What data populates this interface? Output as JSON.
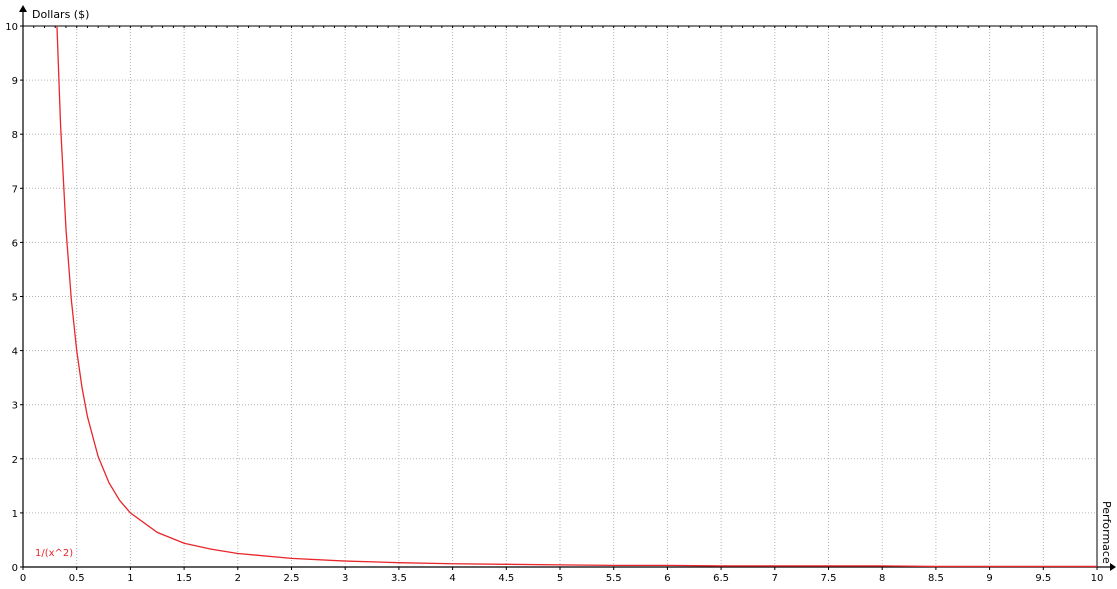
{
  "chart_data": {
    "type": "line",
    "title": "",
    "xlabel": "Performace",
    "ylabel": "Dollars ($)",
    "xlim": [
      0,
      10
    ],
    "ylim": [
      0,
      10
    ],
    "grid": true,
    "x_ticks": [
      "0",
      "0.5",
      "1",
      "1.5",
      "2",
      "2.5",
      "3",
      "3.5",
      "4",
      "4.5",
      "5",
      "5.5",
      "6",
      "6.5",
      "7",
      "7.5",
      "8",
      "8.5",
      "9",
      "9.5",
      "10"
    ],
    "y_ticks": [
      "0",
      "1",
      "2",
      "3",
      "4",
      "5",
      "6",
      "7",
      "8",
      "9",
      "10"
    ],
    "series": [
      {
        "name": "1/(x^2)",
        "color": "#e8262b",
        "x": [
          0.3162,
          0.35,
          0.4,
          0.45,
          0.5,
          0.55,
          0.6,
          0.7,
          0.8,
          0.9,
          1,
          1.25,
          1.5,
          1.75,
          2,
          2.5,
          3,
          3.5,
          4,
          4.5,
          5,
          5.5,
          6,
          6.5,
          7,
          7.5,
          8,
          8.5,
          9,
          9.5,
          10
        ],
        "y": [
          10,
          8.16,
          6.25,
          4.94,
          4,
          3.31,
          2.78,
          2.04,
          1.56,
          1.23,
          1,
          0.64,
          0.44,
          0.33,
          0.25,
          0.16,
          0.11,
          0.08,
          0.06,
          0.05,
          0.04,
          0.03,
          0.03,
          0.02,
          0.02,
          0.02,
          0.02,
          0.01,
          0.01,
          0.01,
          0.01
        ]
      }
    ]
  }
}
